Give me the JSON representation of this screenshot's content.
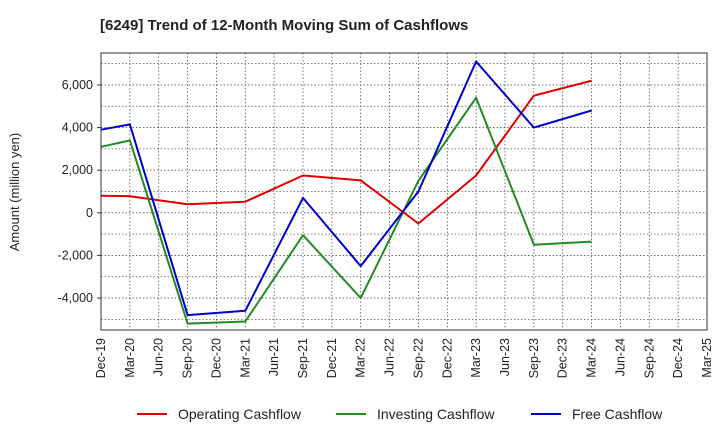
{
  "chart_data": {
    "type": "line",
    "title": "[6249]  Trend of 12-Month Moving Sum of Cashflows",
    "xlabel": "",
    "ylabel": "Amount (million yen)",
    "ylim": [
      -5500,
      7500
    ],
    "yticks": [
      -4000,
      -2000,
      0,
      2000,
      4000,
      6000
    ],
    "ytick_labels": [
      "-4,000",
      "-2,000",
      "0",
      "2,000",
      "4,000",
      "6,000"
    ],
    "categories": [
      "Dec-19",
      "Mar-20",
      "Jun-20",
      "Sep-20",
      "Dec-20",
      "Mar-21",
      "Jun-21",
      "Sep-21",
      "Dec-21",
      "Mar-22",
      "Jun-22",
      "Sep-22",
      "Dec-22",
      "Mar-23",
      "Jun-23",
      "Sep-23",
      "Dec-23",
      "Mar-24",
      "Jun-24",
      "Sep-24",
      "Dec-24",
      "Mar-25"
    ],
    "grid": true,
    "legend_position": "bottom",
    "series": [
      {
        "name": "Operating Cashflow",
        "color": "#e00000",
        "values": [
          800,
          780,
          null,
          400,
          null,
          520,
          null,
          1750,
          null,
          1520,
          null,
          -500,
          null,
          1750,
          null,
          5500,
          null,
          6200,
          null,
          null,
          null,
          null
        ]
      },
      {
        "name": "Investing Cashflow",
        "color": "#228b22",
        "values": [
          3100,
          3400,
          null,
          -5200,
          null,
          -5100,
          null,
          -1050,
          null,
          -4000,
          null,
          1500,
          null,
          5400,
          null,
          -1500,
          null,
          -1350,
          null,
          null,
          null,
          null
        ]
      },
      {
        "name": "Free Cashflow",
        "color": "#0000cc",
        "values": [
          3900,
          4150,
          null,
          -4800,
          null,
          -4600,
          null,
          700,
          null,
          -2500,
          null,
          1000,
          null,
          7100,
          null,
          4000,
          null,
          4800,
          null,
          null,
          null,
          null
        ]
      }
    ]
  }
}
